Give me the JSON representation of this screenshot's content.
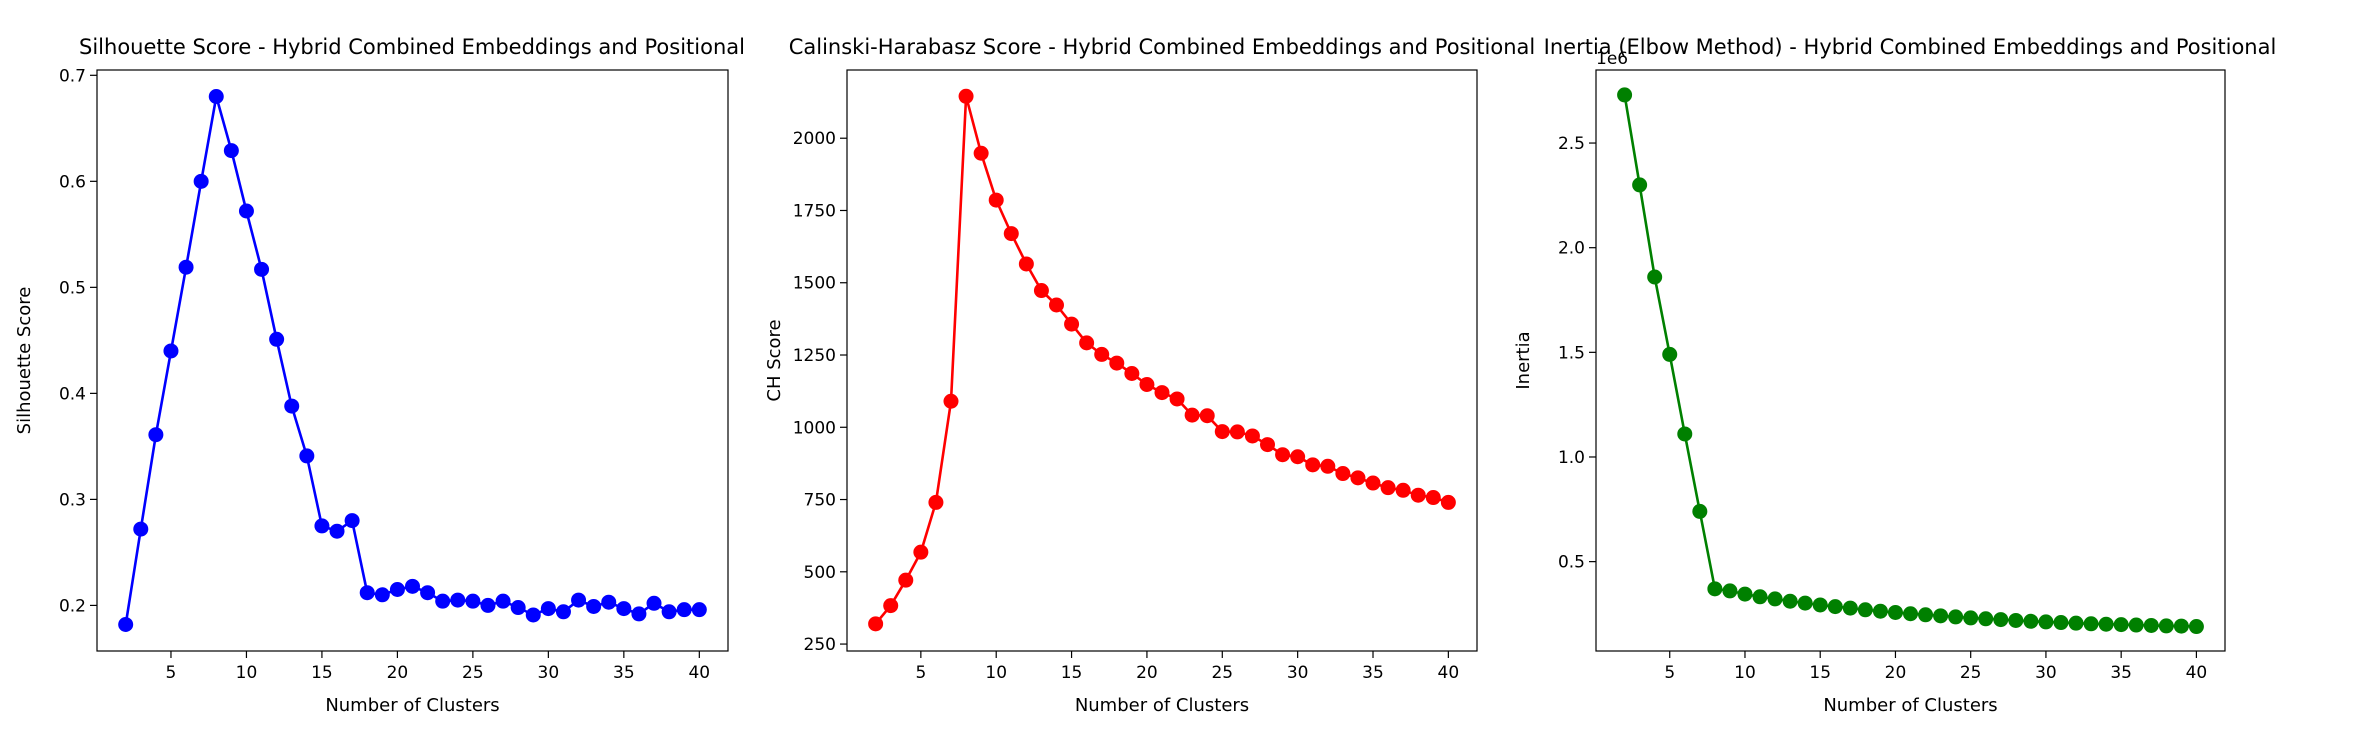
{
  "chart_data": [
    {
      "type": "line",
      "title": "Silhouette Score - Hybrid Combined Embeddings and Positional",
      "xlabel": "Number of Clusters",
      "ylabel": "Silhouette Score",
      "xlim": [
        0.1,
        41.9
      ],
      "ylim": [
        0.157,
        0.705
      ],
      "xticks": [
        5,
        10,
        15,
        20,
        25,
        30,
        35,
        40
      ],
      "yticks": [
        0.2,
        0.3,
        0.4,
        0.5,
        0.6,
        0.7
      ],
      "tick_decimals": 1,
      "offset_label": "",
      "color": "#0000ff",
      "grid": false,
      "x": [
        2,
        3,
        4,
        5,
        6,
        7,
        8,
        9,
        10,
        11,
        12,
        13,
        14,
        15,
        16,
        17,
        18,
        19,
        20,
        21,
        22,
        23,
        24,
        25,
        26,
        27,
        28,
        29,
        30,
        31,
        32,
        33,
        34,
        35,
        36,
        37,
        38,
        39,
        40
      ],
      "values": [
        0.182,
        0.272,
        0.361,
        0.44,
        0.519,
        0.6,
        0.68,
        0.629,
        0.572,
        0.517,
        0.451,
        0.388,
        0.341,
        0.275,
        0.27,
        0.28,
        0.212,
        0.21,
        0.215,
        0.218,
        0.212,
        0.204,
        0.205,
        0.204,
        0.2,
        0.204,
        0.198,
        0.191,
        0.197,
        0.194,
        0.205,
        0.199,
        0.203,
        0.197,
        0.192,
        0.202,
        0.194,
        0.196,
        0.196
      ]
    },
    {
      "type": "line",
      "title": "Calinski-Harabasz Score - Hybrid Combined Embeddings and Positional",
      "xlabel": "Number of Clusters",
      "ylabel": "CH Score",
      "xlim": [
        0.1,
        41.9
      ],
      "ylim": [
        226,
        2236
      ],
      "xticks": [
        5,
        10,
        15,
        20,
        25,
        30,
        35,
        40
      ],
      "yticks": [
        250,
        500,
        750,
        1000,
        1250,
        1500,
        1750,
        2000
      ],
      "tick_decimals": 0,
      "offset_label": "",
      "color": "#ff0000",
      "grid": false,
      "x": [
        2,
        3,
        4,
        5,
        6,
        7,
        8,
        9,
        10,
        11,
        12,
        13,
        14,
        15,
        16,
        17,
        18,
        19,
        20,
        21,
        22,
        23,
        24,
        25,
        26,
        27,
        28,
        29,
        30,
        31,
        32,
        33,
        34,
        35,
        36,
        37,
        38,
        39,
        40
      ],
      "values": [
        320,
        383,
        471,
        568,
        740,
        1090,
        2145,
        1948,
        1786,
        1670,
        1565,
        1473,
        1423,
        1357,
        1292,
        1252,
        1222,
        1186,
        1148,
        1120,
        1098,
        1042,
        1040,
        985,
        984,
        970,
        940,
        905,
        898,
        870,
        865,
        840,
        825,
        807,
        791,
        782,
        765,
        757,
        740
      ]
    },
    {
      "type": "line",
      "title": "Inertia (Elbow Method) - Hybrid Combined Embeddings and Positional",
      "xlabel": "Number of Clusters",
      "ylabel": "Inertia",
      "xlim": [
        0.1,
        41.9
      ],
      "ylim": [
        0.073,
        2.849
      ],
      "xticks": [
        5,
        10,
        15,
        20,
        25,
        30,
        35,
        40
      ],
      "yticks": [
        0.5,
        1.0,
        1.5,
        2.0,
        2.5
      ],
      "tick_decimals": 1,
      "offset_label": "1e6",
      "color": "#008000",
      "grid": false,
      "x": [
        2,
        3,
        4,
        5,
        6,
        7,
        8,
        9,
        10,
        11,
        12,
        13,
        14,
        15,
        16,
        17,
        18,
        19,
        20,
        21,
        22,
        23,
        24,
        25,
        26,
        27,
        28,
        29,
        30,
        31,
        32,
        33,
        34,
        35,
        36,
        37,
        38,
        39,
        40
      ],
      "values": [
        2.73,
        2.3,
        1.86,
        1.49,
        1.11,
        0.74,
        0.37,
        0.36,
        0.345,
        0.332,
        0.322,
        0.311,
        0.302,
        0.293,
        0.285,
        0.278,
        0.27,
        0.263,
        0.257,
        0.251,
        0.246,
        0.241,
        0.236,
        0.231,
        0.227,
        0.223,
        0.219,
        0.215,
        0.212,
        0.209,
        0.206,
        0.203,
        0.201,
        0.199,
        0.197,
        0.195,
        0.193,
        0.192,
        0.19
      ]
    }
  ]
}
